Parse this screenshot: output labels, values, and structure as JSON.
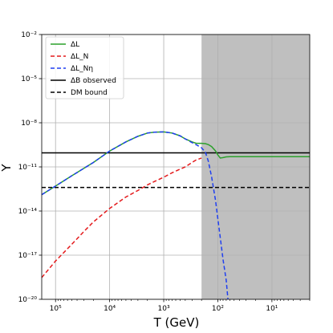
{
  "chart_data": {
    "type": "line",
    "xlabel": "T (GeV)",
    "ylabel": "Y",
    "x_scale": "log",
    "x_reversed": true,
    "y_scale": "log",
    "xlim": [
      180000,
      2
    ],
    "ylim": [
      1e-20,
      0.01
    ],
    "grid": true,
    "legend_position": "top-left",
    "x_ticks": [
      {
        "value": 100000,
        "label": "10⁵"
      },
      {
        "value": 10000,
        "label": "10⁴"
      },
      {
        "value": 1000,
        "label": "10³"
      },
      {
        "value": 100,
        "label": "10²"
      },
      {
        "value": 10,
        "label": "10¹"
      }
    ],
    "y_ticks": [
      {
        "value": 1e-20,
        "label": "10⁻²⁰"
      },
      {
        "value": 1e-17,
        "label": "10⁻¹⁷"
      },
      {
        "value": 1e-14,
        "label": "10⁻¹⁴"
      },
      {
        "value": 1e-11,
        "label": "10⁻¹¹"
      },
      {
        "value": 1e-08,
        "label": "10⁻⁸"
      },
      {
        "value": 1e-05,
        "label": "10⁻⁵"
      },
      {
        "value": 0.01,
        "label": "10⁻²"
      }
    ],
    "shaded_region": {
      "x_from": 200,
      "x_to": 2,
      "color": "#bfbfbf"
    },
    "series": [
      {
        "name": "ΔL",
        "color": "#2ca02c",
        "dash": "solid",
        "points": [
          [
            180000,
            1.3e-13
          ],
          [
            100000,
            5e-13
          ],
          [
            50000,
            2.5e-12
          ],
          [
            20000,
            2e-11
          ],
          [
            10000,
            1.2e-10
          ],
          [
            5000,
            5e-10
          ],
          [
            3000,
            1.2e-09
          ],
          [
            2000,
            2e-09
          ],
          [
            1500,
            2.3e-09
          ],
          [
            1000,
            2.4e-09
          ],
          [
            700,
            2e-09
          ],
          [
            500,
            1.3e-09
          ],
          [
            400,
            8e-10
          ],
          [
            300,
            5e-10
          ],
          [
            250,
            4e-10
          ],
          [
            200,
            4e-10
          ],
          [
            170,
            3.8e-10
          ],
          [
            150,
            3.3e-10
          ],
          [
            130,
            2.4e-10
          ],
          [
            110,
            1.2e-10
          ],
          [
            100,
            6.5e-11
          ],
          [
            90,
            4e-11
          ],
          [
            80,
            4.3e-11
          ],
          [
            70,
            4.8e-11
          ],
          [
            60,
            5e-11
          ],
          [
            50,
            5e-11
          ],
          [
            20,
            5e-11
          ],
          [
            10,
            5e-11
          ],
          [
            2,
            5e-11
          ]
        ]
      },
      {
        "name": "ΔL_N",
        "color": "#e41a1c",
        "dash": "dashed",
        "points": [
          [
            180000,
            3e-19
          ],
          [
            100000,
            4e-18
          ],
          [
            50000,
            5.5e-17
          ],
          [
            30000,
            4e-16
          ],
          [
            20000,
            1.8e-15
          ],
          [
            10000,
            1.5e-14
          ],
          [
            5000,
            9e-14
          ],
          [
            3000,
            2.5e-13
          ],
          [
            2000,
            6e-13
          ],
          [
            1500,
            1e-12
          ],
          [
            1000,
            2e-12
          ],
          [
            700,
            4e-12
          ],
          [
            500,
            7e-12
          ],
          [
            400,
            1e-11
          ],
          [
            300,
            2e-11
          ],
          [
            250,
            3e-11
          ],
          [
            200,
            4e-11
          ]
        ]
      },
      {
        "name": "ΔL_Nη",
        "color": "#1f3ff0",
        "dash": "dashed",
        "points": [
          [
            180000,
            1.3e-13
          ],
          [
            100000,
            5e-13
          ],
          [
            50000,
            2.5e-12
          ],
          [
            20000,
            2e-11
          ],
          [
            10000,
            1.2e-10
          ],
          [
            5000,
            5e-10
          ],
          [
            3000,
            1.2e-09
          ],
          [
            2000,
            2e-09
          ],
          [
            1500,
            2.3e-09
          ],
          [
            1000,
            2.4e-09
          ],
          [
            700,
            2e-09
          ],
          [
            500,
            1.3e-09
          ],
          [
            400,
            8e-10
          ],
          [
            300,
            4.5e-10
          ],
          [
            250,
            3.2e-10
          ],
          [
            200,
            2e-10
          ],
          [
            170,
            1e-10
          ],
          [
            150,
            2.5e-11
          ],
          [
            130,
            2e-12
          ],
          [
            110,
            5e-14
          ],
          [
            100,
            3e-15
          ],
          [
            90,
            1.5e-16
          ],
          [
            80,
            5e-18
          ],
          [
            70,
            2e-19
          ],
          [
            65,
            1e-20
          ]
        ]
      },
      {
        "name": "ΔB observed",
        "color": "#000000",
        "dash": "solid",
        "points": [
          [
            180000,
            9e-11
          ],
          [
            2,
            9e-11
          ]
        ]
      },
      {
        "name": "DM bound",
        "color": "#000000",
        "dash": "dashed",
        "points": [
          [
            180000,
            4e-13
          ],
          [
            2,
            4e-13
          ]
        ]
      }
    ]
  }
}
